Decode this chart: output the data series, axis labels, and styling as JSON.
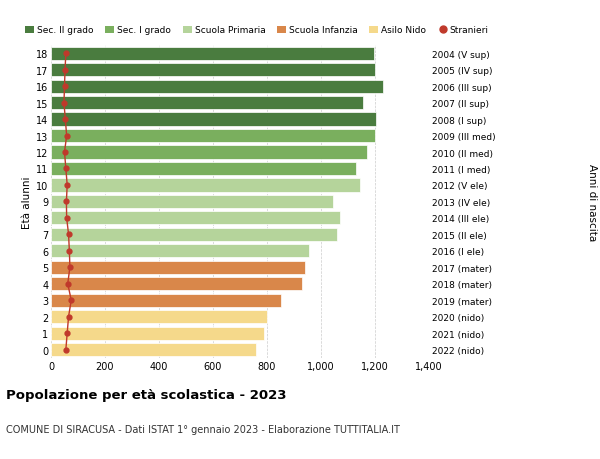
{
  "ages": [
    18,
    17,
    16,
    15,
    14,
    13,
    12,
    11,
    10,
    9,
    8,
    7,
    6,
    5,
    4,
    3,
    2,
    1,
    0
  ],
  "years_labels": [
    "2004 (V sup)",
    "2005 (IV sup)",
    "2006 (III sup)",
    "2007 (II sup)",
    "2008 (I sup)",
    "2009 (III med)",
    "2010 (II med)",
    "2011 (I med)",
    "2012 (V ele)",
    "2013 (IV ele)",
    "2014 (III ele)",
    "2015 (II ele)",
    "2016 (I ele)",
    "2017 (mater)",
    "2018 (mater)",
    "2019 (mater)",
    "2020 (nido)",
    "2021 (nido)",
    "2022 (nido)"
  ],
  "bar_values": [
    1195,
    1200,
    1230,
    1155,
    1205,
    1200,
    1170,
    1130,
    1145,
    1045,
    1070,
    1060,
    955,
    940,
    930,
    850,
    800,
    790,
    760
  ],
  "stranieri_values": [
    55,
    52,
    50,
    48,
    53,
    58,
    50,
    55,
    60,
    57,
    58,
    65,
    68,
    70,
    62,
    75,
    65,
    60,
    55
  ],
  "bar_colors": [
    "#4a7c3f",
    "#4a7c3f",
    "#4a7c3f",
    "#4a7c3f",
    "#4a7c3f",
    "#7aaf5e",
    "#7aaf5e",
    "#7aaf5e",
    "#b5d49b",
    "#b5d49b",
    "#b5d49b",
    "#b5d49b",
    "#b5d49b",
    "#d9874a",
    "#d9874a",
    "#d9874a",
    "#f5d98b",
    "#f5d98b",
    "#f5d98b"
  ],
  "legend_labels": [
    "Sec. II grado",
    "Sec. I grado",
    "Scuola Primaria",
    "Scuola Infanzia",
    "Asilo Nido",
    "Stranieri"
  ],
  "legend_colors": [
    "#4a7c3f",
    "#7aaf5e",
    "#b5d49b",
    "#d9874a",
    "#f5d98b",
    "#c0392b"
  ],
  "stranieri_color": "#c0392b",
  "title": "Popolazione per età scolastica - 2023",
  "subtitle": "COMUNE DI SIRACUSA - Dati ISTAT 1° gennaio 2023 - Elaborazione TUTTITALIA.IT",
  "ylabel_left": "Età alunni",
  "ylabel_right": "Anni di nascita",
  "xlim": [
    0,
    1400
  ],
  "xticks": [
    0,
    200,
    400,
    600,
    800,
    1000,
    1200,
    1400
  ],
  "xtick_labels": [
    "0",
    "200",
    "400",
    "600",
    "800",
    "1,000",
    "1,200",
    "1,400"
  ],
  "bar_height": 0.8,
  "background_color": "#ffffff",
  "grid_color": "#cccccc",
  "bar_edge_color": "#ffffff"
}
